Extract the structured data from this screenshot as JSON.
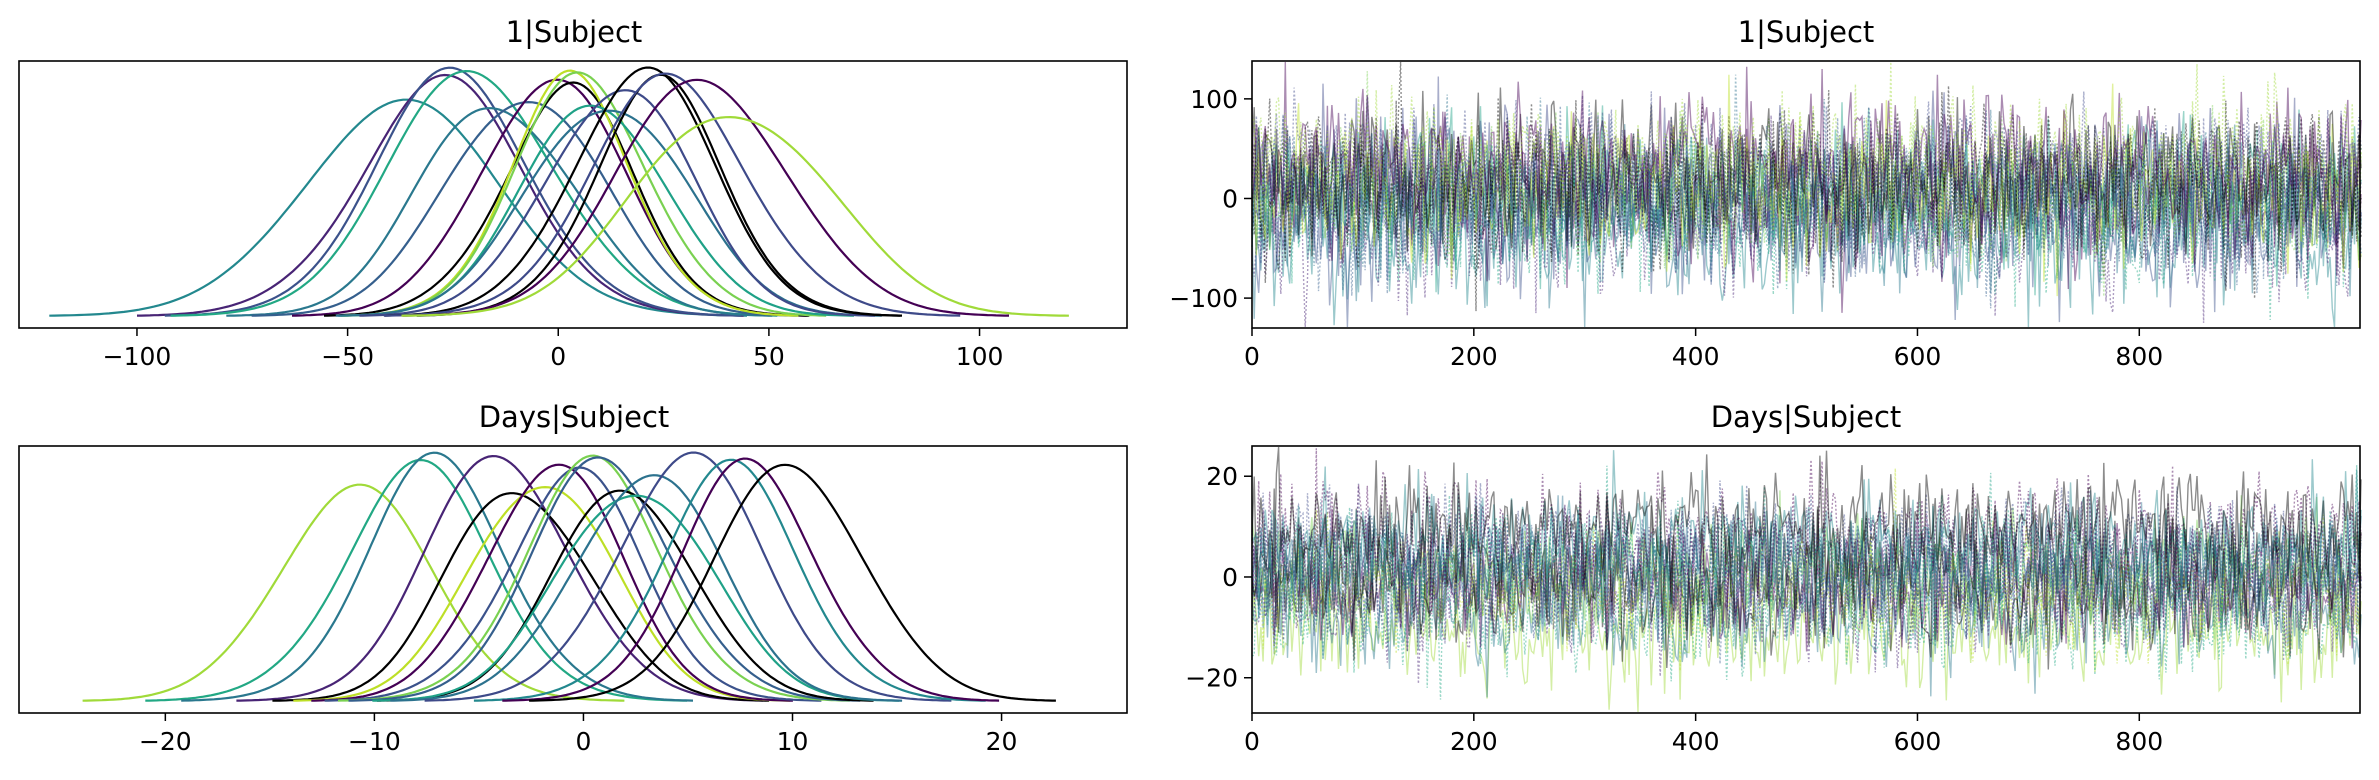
{
  "chart_data": [
    {
      "type": "line",
      "kind": "density",
      "title": "1|Subject",
      "xlim": [
        -128,
        135
      ],
      "xticks": [
        -100,
        -50,
        0,
        50,
        100
      ],
      "yticks_shown": false,
      "series": [
        {
          "color": "#23888e",
          "mu": -38,
          "sigma": 23
        },
        {
          "color": "#482475",
          "mu": -28,
          "sigma": 20
        },
        {
          "color": "#3b528b",
          "mu": -25,
          "sigma": 19
        },
        {
          "color": "#22a884",
          "mu": -20,
          "sigma": 20
        },
        {
          "color": "#2a788e",
          "mu": -14,
          "sigma": 18
        },
        {
          "color": "#355f8d",
          "mu": -8,
          "sigma": 18
        },
        {
          "color": "#440154",
          "mu": -2,
          "sigma": 17
        },
        {
          "color": "#000000",
          "mu": 2,
          "sigma": 16
        },
        {
          "color": "#bddf26",
          "mu": 3,
          "sigma": 15
        },
        {
          "color": "#7ad151",
          "mu": 6,
          "sigma": 16
        },
        {
          "color": "#1fa187",
          "mu": 9,
          "sigma": 17
        },
        {
          "color": "#2c728e",
          "mu": 12,
          "sigma": 18
        },
        {
          "color": "#3e4a89",
          "mu": 14,
          "sigma": 17
        },
        {
          "color": "#000000",
          "mu": 20,
          "sigma": 17
        },
        {
          "color": "#000000",
          "mu": 24,
          "sigma": 16
        },
        {
          "color": "#3e4a89",
          "mu": 27,
          "sigma": 19
        },
        {
          "color": "#440154",
          "mu": 35,
          "sigma": 20
        },
        {
          "color": "#a0da39",
          "mu": 42,
          "sigma": 22
        }
      ]
    },
    {
      "type": "line",
      "kind": "trace",
      "title": "1|Subject",
      "xlim": [
        0,
        999
      ],
      "ylim": [
        -130,
        138
      ],
      "xticks": [
        0,
        200,
        400,
        600,
        800
      ],
      "yticks": [
        -100,
        0,
        100
      ],
      "draws": 1000
    },
    {
      "type": "line",
      "kind": "density",
      "title": "Days|Subject",
      "xlim": [
        -27,
        26
      ],
      "xticks": [
        -20,
        -10,
        0,
        10,
        20
      ],
      "yticks_shown": false,
      "series": [
        {
          "color": "#a0da39",
          "mu": -11,
          "sigma": 3.6
        },
        {
          "color": "#22a884",
          "mu": -8,
          "sigma": 3.6
        },
        {
          "color": "#2a788e",
          "mu": -7,
          "sigma": 3.4
        },
        {
          "color": "#482475",
          "mu": -4,
          "sigma": 3.5
        },
        {
          "color": "#000000",
          "mu": -3,
          "sigma": 3.3
        },
        {
          "color": "#bddf26",
          "mu": -2,
          "sigma": 3.3
        },
        {
          "color": "#440154",
          "mu": -1.5,
          "sigma": 3.2
        },
        {
          "color": "#3b528b",
          "mu": -0.5,
          "sigma": 3.3
        },
        {
          "color": "#7ad151",
          "mu": 0.5,
          "sigma": 3.4
        },
        {
          "color": "#355f8d",
          "mu": 1,
          "sigma": 3.4
        },
        {
          "color": "#000000",
          "mu": 2,
          "sigma": 3.3
        },
        {
          "color": "#1fa187",
          "mu": 2.5,
          "sigma": 3.5
        },
        {
          "color": "#2c728e",
          "mu": 3,
          "sigma": 3.4
        },
        {
          "color": "#3e4a89",
          "mu": 5,
          "sigma": 3.5
        },
        {
          "color": "#23888e",
          "mu": 7,
          "sigma": 3.4
        },
        {
          "color": "#440154",
          "mu": 8,
          "sigma": 3.3
        },
        {
          "color": "#000000",
          "mu": 10,
          "sigma": 3.5
        }
      ]
    },
    {
      "type": "line",
      "kind": "trace",
      "title": "Days|Subject",
      "xlim": [
        0,
        999
      ],
      "ylim": [
        -27,
        26
      ],
      "xticks": [
        0,
        200,
        400,
        600,
        800
      ],
      "yticks": [
        -20,
        0,
        20
      ],
      "draws": 1000
    }
  ]
}
